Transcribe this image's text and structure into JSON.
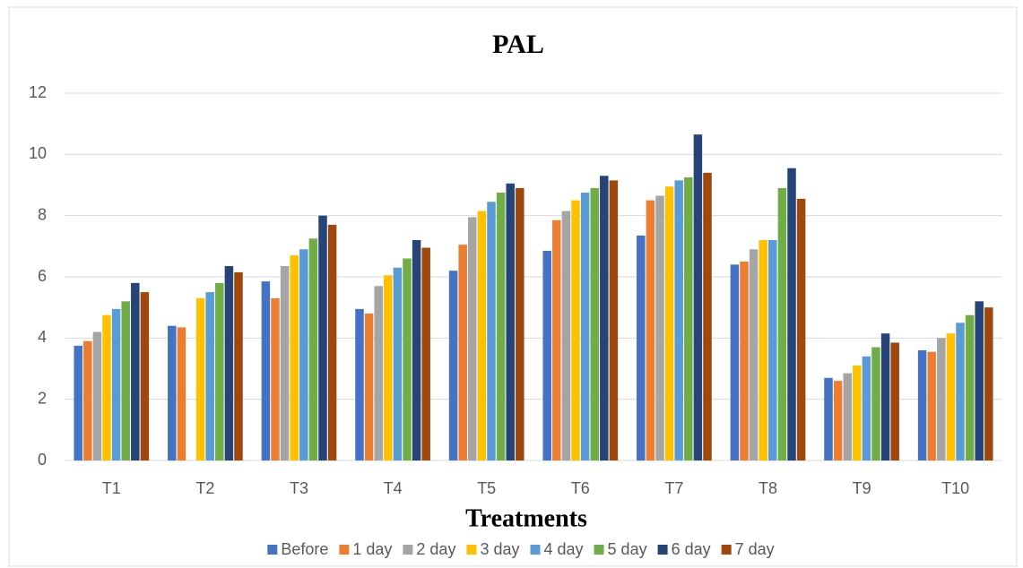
{
  "chart_data": {
    "type": "bar",
    "title": "PAL",
    "x_label": "Treatments",
    "categories": [
      "T1",
      "T2",
      "T3",
      "T4",
      "T5",
      "T6",
      "T7",
      "T8",
      "T9",
      "T10"
    ],
    "series": [
      {
        "name": "Before",
        "color": "#4472c4",
        "values": [
          3.75,
          4.4,
          5.85,
          4.95,
          6.2,
          6.85,
          7.35,
          6.4,
          2.7,
          3.6
        ]
      },
      {
        "name": "1 day",
        "color": "#ed7d31",
        "values": [
          3.9,
          4.35,
          5.3,
          4.8,
          7.05,
          7.85,
          8.5,
          6.5,
          2.6,
          3.55
        ]
      },
      {
        "name": "2 day",
        "color": "#a5a5a5",
        "values": [
          4.2,
          null,
          6.35,
          5.7,
          7.95,
          8.15,
          8.65,
          6.9,
          2.85,
          4.0
        ]
      },
      {
        "name": "3 day",
        "color": "#ffc000",
        "values": [
          4.75,
          5.3,
          6.7,
          6.05,
          8.15,
          8.5,
          8.95,
          7.2,
          3.1,
          4.15
        ]
      },
      {
        "name": "4 day",
        "color": "#5b9bd5",
        "values": [
          4.95,
          5.5,
          6.9,
          6.3,
          8.45,
          8.75,
          9.15,
          7.2,
          3.4,
          4.5
        ]
      },
      {
        "name": "5 day",
        "color": "#70ad47",
        "values": [
          5.2,
          5.8,
          7.25,
          6.6,
          8.75,
          8.9,
          9.25,
          8.9,
          3.7,
          4.75
        ]
      },
      {
        "name": "6 day",
        "color": "#264478",
        "values": [
          5.8,
          6.35,
          8.0,
          7.2,
          9.05,
          9.3,
          10.65,
          9.55,
          4.15,
          5.2
        ]
      },
      {
        "name": "7 day",
        "color": "#9e480e",
        "values": [
          5.5,
          6.15,
          7.7,
          6.95,
          8.9,
          9.15,
          9.4,
          8.55,
          3.85,
          5.0
        ]
      }
    ],
    "ylim": [
      0,
      12
    ],
    "yticks": [
      0,
      2,
      4,
      6,
      8,
      10,
      12
    ],
    "grid": true,
    "legend": "bottom"
  }
}
